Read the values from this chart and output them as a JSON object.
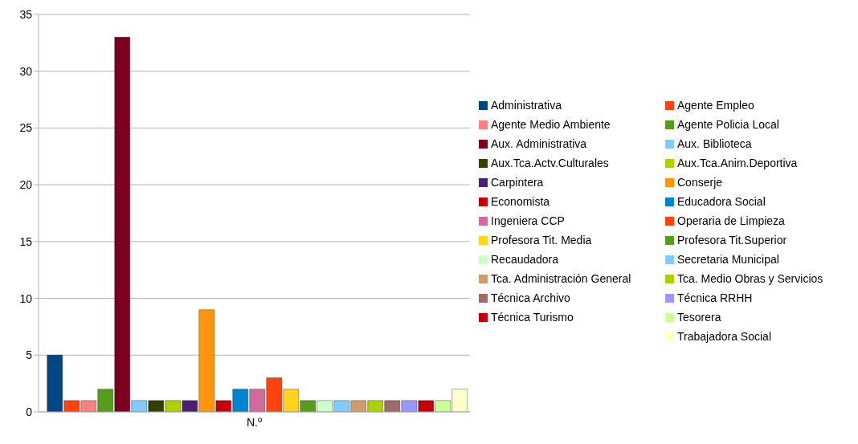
{
  "chart_data": {
    "type": "bar",
    "categories": [
      "N.º"
    ],
    "ylim": [
      0,
      35
    ],
    "yticks": [
      0,
      5,
      10,
      15,
      20,
      25,
      30,
      35
    ],
    "grid": "y",
    "legend": "right",
    "series": [
      {
        "name": "Administrativa",
        "color": "#004586",
        "values": [
          5
        ]
      },
      {
        "name": "Agente Empleo",
        "color": "#ff420e",
        "values": [
          1
        ]
      },
      {
        "name": "Agente Medio Ambiente",
        "color": "#ff8080",
        "values": [
          1
        ]
      },
      {
        "name": "Agente Policia Local",
        "color": "#579d1c",
        "values": [
          2
        ]
      },
      {
        "name": "Aux. Administrativa",
        "color": "#7e0021",
        "values": [
          33
        ]
      },
      {
        "name": "Aux. Biblioteca",
        "color": "#83caff",
        "values": [
          1
        ]
      },
      {
        "name": "Aux.Tca.Actv.Culturales",
        "color": "#314004",
        "values": [
          1
        ]
      },
      {
        "name": "Aux.Tca.Anim.Deportiva",
        "color": "#aecf00",
        "values": [
          1
        ]
      },
      {
        "name": "Carpintera",
        "color": "#4b1f6f",
        "values": [
          1
        ]
      },
      {
        "name": "Conserje",
        "color": "#ff950e",
        "values": [
          9
        ]
      },
      {
        "name": "Economista",
        "color": "#c5000b",
        "values": [
          1
        ]
      },
      {
        "name": "Educadora Social",
        "color": "#0084d1",
        "values": [
          2
        ]
      },
      {
        "name": "Ingeniera CCP",
        "color": "#d36a9c",
        "values": [
          2
        ]
      },
      {
        "name": "Operaria de Limpieza",
        "color": "#ff420e",
        "values": [
          3
        ]
      },
      {
        "name": "Profesora Tit. Media",
        "color": "#ffd320",
        "values": [
          2
        ]
      },
      {
        "name": "Profesora Tit.Superior",
        "color": "#579d1c",
        "values": [
          1
        ]
      },
      {
        "name": "Recaudadora",
        "color": "#ccffcc",
        "values": [
          1
        ]
      },
      {
        "name": "Secretaria Municipal",
        "color": "#83caff",
        "values": [
          1
        ]
      },
      {
        "name": "Tca. Administración General",
        "color": "#d09c6c",
        "values": [
          1
        ]
      },
      {
        "name": "Tca. Medio Obras y Servicios",
        "color": "#aecf00",
        "values": [
          1
        ]
      },
      {
        "name": "Técnica Archivo",
        "color": "#a06b6b",
        "values": [
          1
        ]
      },
      {
        "name": "Técnica RRHH",
        "color": "#9999ff",
        "values": [
          1
        ]
      },
      {
        "name": "Técnica Turismo",
        "color": "#c5000b",
        "values": [
          1
        ]
      },
      {
        "name": "Tesorera",
        "color": "#ccff99",
        "values": [
          1
        ]
      },
      {
        "name": "Trabajadora Social",
        "color": "#ffffcc",
        "values": [
          2
        ]
      }
    ]
  }
}
